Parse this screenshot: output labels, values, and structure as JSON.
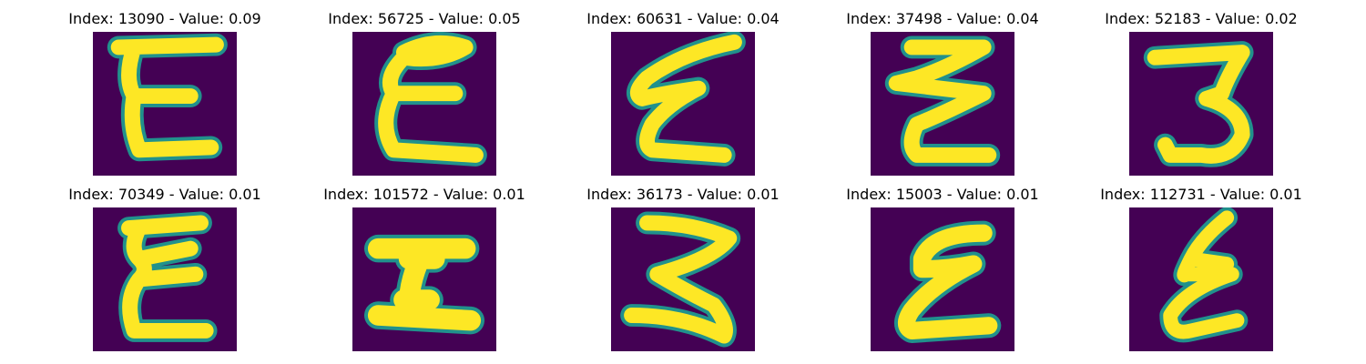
{
  "panels": [
    {
      "title": "Index: 13090 - Value: 0.09"
    },
    {
      "title": "Index: 56725 - Value: 0.05"
    },
    {
      "title": "Index: 60631 - Value: 0.04"
    },
    {
      "title": "Index: 37498 - Value: 0.04"
    },
    {
      "title": "Index: 52183 - Value: 0.02"
    },
    {
      "title": "Index: 70349 - Value: 0.01"
    },
    {
      "title": "Index: 101572 - Value: 0.01"
    },
    {
      "title": "Index: 36173 - Value: 0.01"
    },
    {
      "title": "Index: 15003 - Value: 0.01"
    },
    {
      "title": "Index: 112731 - Value: 0.01"
    }
  ],
  "colors": {
    "background": "#440154",
    "stroke": "#fde725",
    "edge": "#21918c"
  }
}
